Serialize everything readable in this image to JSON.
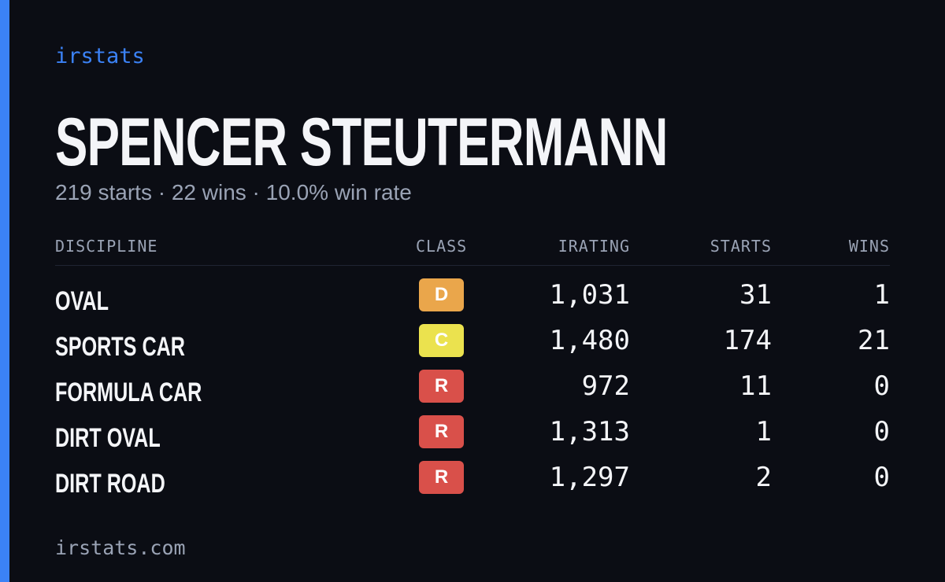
{
  "brand": "irstats",
  "profile": {
    "name": "SPENCER STEUTERMANN",
    "summary": "219 starts · 22 wins · 10.0% win rate"
  },
  "table": {
    "headers": [
      "DISCIPLINE",
      "CLASS",
      "IRATING",
      "STARTS",
      "WINS"
    ],
    "rows": [
      {
        "discipline": "OVAL",
        "class": "D",
        "class_color": "#eaa64b",
        "irating": "1,031",
        "starts": "31",
        "wins": "1"
      },
      {
        "discipline": "SPORTS CAR",
        "class": "C",
        "class_color": "#ebe24e",
        "irating": "1,480",
        "starts": "174",
        "wins": "21"
      },
      {
        "discipline": "FORMULA CAR",
        "class": "R",
        "class_color": "#d9504a",
        "irating": "972",
        "starts": "11",
        "wins": "0"
      },
      {
        "discipline": "DIRT OVAL",
        "class": "R",
        "class_color": "#d9504a",
        "irating": "1,313",
        "starts": "1",
        "wins": "0"
      },
      {
        "discipline": "DIRT ROAD",
        "class": "R",
        "class_color": "#d9504a",
        "irating": "1,297",
        "starts": "2",
        "wins": "0"
      }
    ]
  },
  "footer": "irstats.com"
}
